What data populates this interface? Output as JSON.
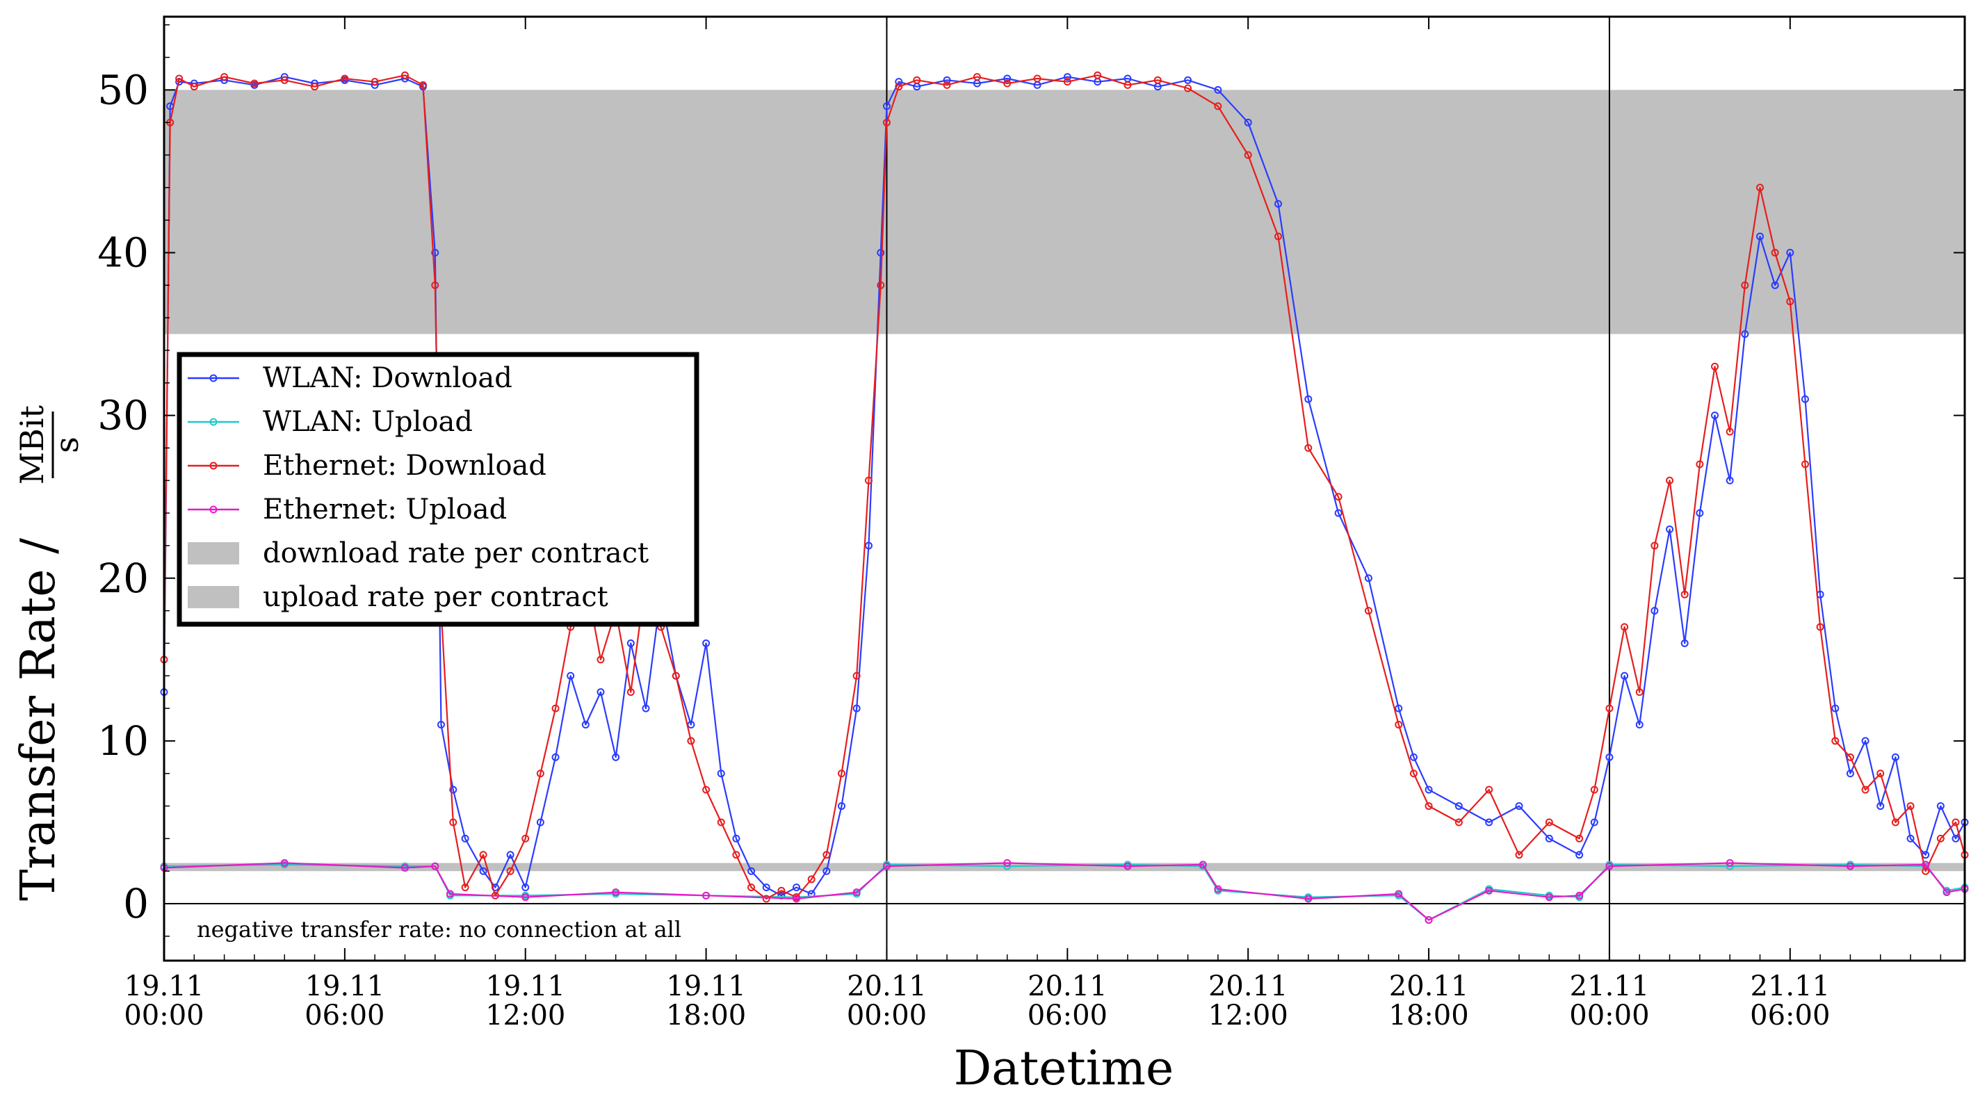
{
  "chart_data": {
    "type": "line",
    "xlabel": "Datetime",
    "ylabel": "Transfer Rate /",
    "ylabel_unit_numerator": "MBit",
    "ylabel_unit_denominator": "s",
    "ylim": [
      -3.5,
      54.5
    ],
    "xlim_hours": [
      0,
      59.8
    ],
    "yticks": [
      "0",
      "10",
      "20",
      "30",
      "40",
      "50"
    ],
    "xticks": [
      {
        "day": "19.11",
        "time": "00:00",
        "hours": 0
      },
      {
        "day": "19.11",
        "time": "06:00",
        "hours": 6
      },
      {
        "day": "19.11",
        "time": "12:00",
        "hours": 12
      },
      {
        "day": "19.11",
        "time": "18:00",
        "hours": 18
      },
      {
        "day": "20.11",
        "time": "00:00",
        "hours": 24
      },
      {
        "day": "20.11",
        "time": "06:00",
        "hours": 30
      },
      {
        "day": "20.11",
        "time": "12:00",
        "hours": 36
      },
      {
        "day": "20.11",
        "time": "18:00",
        "hours": 42
      },
      {
        "day": "21.11",
        "time": "00:00",
        "hours": 48
      },
      {
        "day": "21.11",
        "time": "06:00",
        "hours": 54
      }
    ],
    "day_boundaries_hours": [
      24,
      48
    ],
    "bands": [
      {
        "name": "download rate per contract",
        "y_range": [
          35,
          50
        ],
        "color": "#c0c0c0"
      },
      {
        "name": "upload rate per contract",
        "y_range": [
          2.0,
          2.5
        ],
        "color": "#c0c0c0"
      }
    ],
    "series": [
      {
        "name": "WLAN: Download",
        "color": "#2a3cff",
        "points": [
          [
            0.0,
            13
          ],
          [
            0.2,
            49
          ],
          [
            0.5,
            50.5
          ],
          [
            1.0,
            50.4
          ],
          [
            2,
            50.6
          ],
          [
            3,
            50.3
          ],
          [
            4,
            50.8
          ],
          [
            5,
            50.4
          ],
          [
            6,
            50.6
          ],
          [
            7,
            50.3
          ],
          [
            8,
            50.7
          ],
          [
            8.6,
            50.2
          ],
          [
            9.0,
            40
          ],
          [
            9.2,
            11
          ],
          [
            9.6,
            7
          ],
          [
            10.0,
            4
          ],
          [
            10.6,
            2
          ],
          [
            11,
            1
          ],
          [
            11.5,
            3
          ],
          [
            12,
            1
          ],
          [
            12.5,
            5
          ],
          [
            13,
            9
          ],
          [
            13.5,
            14
          ],
          [
            14,
            11
          ],
          [
            14.5,
            13
          ],
          [
            15,
            9
          ],
          [
            15.5,
            16
          ],
          [
            16,
            12
          ],
          [
            16.5,
            19
          ],
          [
            17,
            14
          ],
          [
            17.5,
            11
          ],
          [
            18,
            16
          ],
          [
            18.5,
            8
          ],
          [
            19,
            4
          ],
          [
            19.5,
            2
          ],
          [
            20,
            1
          ],
          [
            20.5,
            0.5
          ],
          [
            21,
            1
          ],
          [
            21.5,
            0.6
          ],
          [
            22,
            2
          ],
          [
            22.5,
            6
          ],
          [
            23,
            12
          ],
          [
            23.4,
            22
          ],
          [
            23.8,
            40
          ],
          [
            24.0,
            49
          ],
          [
            24.4,
            50.5
          ],
          [
            25,
            50.2
          ],
          [
            26,
            50.6
          ],
          [
            27,
            50.4
          ],
          [
            28,
            50.7
          ],
          [
            29,
            50.3
          ],
          [
            30,
            50.8
          ],
          [
            31,
            50.5
          ],
          [
            32,
            50.7
          ],
          [
            33,
            50.2
          ],
          [
            34,
            50.6
          ],
          [
            35,
            50.0
          ],
          [
            36,
            48
          ],
          [
            37,
            43
          ],
          [
            38,
            31
          ],
          [
            39,
            24
          ],
          [
            40,
            20
          ],
          [
            41,
            12
          ],
          [
            41.5,
            9
          ],
          [
            42,
            7
          ],
          [
            43,
            6
          ],
          [
            44,
            5
          ],
          [
            45,
            6
          ],
          [
            46,
            4
          ],
          [
            47,
            3
          ],
          [
            47.5,
            5
          ],
          [
            48,
            9
          ],
          [
            48.5,
            14
          ],
          [
            49,
            11
          ],
          [
            49.5,
            18
          ],
          [
            50,
            23
          ],
          [
            50.5,
            16
          ],
          [
            51,
            24
          ],
          [
            51.5,
            30
          ],
          [
            52,
            26
          ],
          [
            52.5,
            35
          ],
          [
            53,
            41
          ],
          [
            53.5,
            38
          ],
          [
            54,
            40
          ],
          [
            54.5,
            31
          ],
          [
            55,
            19
          ],
          [
            55.5,
            12
          ],
          [
            56,
            8
          ],
          [
            56.5,
            10
          ],
          [
            57,
            6
          ],
          [
            57.5,
            9
          ],
          [
            58,
            4
          ],
          [
            58.5,
            3
          ],
          [
            59,
            6
          ],
          [
            59.5,
            4
          ],
          [
            59.8,
            5
          ]
        ]
      },
      {
        "name": "WLAN: Upload",
        "color": "#20c8c8",
        "points": [
          [
            0,
            2.3
          ],
          [
            4,
            2.4
          ],
          [
            8,
            2.3
          ],
          [
            9,
            2.3
          ],
          [
            9.5,
            0.5
          ],
          [
            12,
            0.5
          ],
          [
            15,
            0.6
          ],
          [
            18,
            0.5
          ],
          [
            21,
            0.4
          ],
          [
            23,
            0.6
          ],
          [
            24,
            2.4
          ],
          [
            28,
            2.3
          ],
          [
            32,
            2.4
          ],
          [
            34.5,
            2.3
          ],
          [
            35,
            0.8
          ],
          [
            38,
            0.4
          ],
          [
            41,
            0.5
          ],
          [
            42,
            -1
          ],
          [
            44,
            0.9
          ],
          [
            46,
            0.5
          ],
          [
            47,
            0.4
          ],
          [
            48,
            2.4
          ],
          [
            52,
            2.3
          ],
          [
            56,
            2.4
          ],
          [
            58.5,
            2.3
          ],
          [
            59.2,
            0.8
          ],
          [
            59.8,
            1.0
          ]
        ]
      },
      {
        "name": "Ethernet: Download",
        "color": "#e61e1e",
        "points": [
          [
            0.0,
            15
          ],
          [
            0.2,
            48
          ],
          [
            0.5,
            50.7
          ],
          [
            1.0,
            50.2
          ],
          [
            2,
            50.8
          ],
          [
            3,
            50.4
          ],
          [
            4,
            50.6
          ],
          [
            5,
            50.2
          ],
          [
            6,
            50.7
          ],
          [
            7,
            50.5
          ],
          [
            8,
            50.9
          ],
          [
            8.6,
            50.3
          ],
          [
            9.0,
            38
          ],
          [
            9.2,
            18
          ],
          [
            9.6,
            5
          ],
          [
            10.0,
            1
          ],
          [
            10.6,
            3
          ],
          [
            11,
            0.5
          ],
          [
            11.5,
            2
          ],
          [
            12,
            4
          ],
          [
            12.5,
            8
          ],
          [
            13,
            12
          ],
          [
            13.5,
            17
          ],
          [
            14,
            20
          ],
          [
            14.5,
            15
          ],
          [
            15,
            18
          ],
          [
            15.5,
            13
          ],
          [
            16,
            20
          ],
          [
            16.5,
            17
          ],
          [
            17,
            14
          ],
          [
            17.5,
            10
          ],
          [
            18,
            7
          ],
          [
            18.5,
            5
          ],
          [
            19,
            3
          ],
          [
            19.5,
            1
          ],
          [
            20,
            0.3
          ],
          [
            20.5,
            0.8
          ],
          [
            21,
            0.4
          ],
          [
            21.5,
            1.5
          ],
          [
            22,
            3
          ],
          [
            22.5,
            8
          ],
          [
            23,
            14
          ],
          [
            23.4,
            26
          ],
          [
            23.8,
            38
          ],
          [
            24.0,
            48
          ],
          [
            24.4,
            50.2
          ],
          [
            25,
            50.6
          ],
          [
            26,
            50.3
          ],
          [
            27,
            50.8
          ],
          [
            28,
            50.4
          ],
          [
            29,
            50.7
          ],
          [
            30,
            50.5
          ],
          [
            31,
            50.9
          ],
          [
            32,
            50.3
          ],
          [
            33,
            50.6
          ],
          [
            34,
            50.1
          ],
          [
            35,
            49
          ],
          [
            36,
            46
          ],
          [
            37,
            41
          ],
          [
            38,
            28
          ],
          [
            39,
            25
          ],
          [
            40,
            18
          ],
          [
            41,
            11
          ],
          [
            41.5,
            8
          ],
          [
            42,
            6
          ],
          [
            43,
            5
          ],
          [
            44,
            7
          ],
          [
            45,
            3
          ],
          [
            46,
            5
          ],
          [
            47,
            4
          ],
          [
            47.5,
            7
          ],
          [
            48,
            12
          ],
          [
            48.5,
            17
          ],
          [
            49,
            13
          ],
          [
            49.5,
            22
          ],
          [
            50,
            26
          ],
          [
            50.5,
            19
          ],
          [
            51,
            27
          ],
          [
            51.5,
            33
          ],
          [
            52,
            29
          ],
          [
            52.5,
            38
          ],
          [
            53,
            44
          ],
          [
            53.5,
            40
          ],
          [
            54,
            37
          ],
          [
            54.5,
            27
          ],
          [
            55,
            17
          ],
          [
            55.5,
            10
          ],
          [
            56,
            9
          ],
          [
            56.5,
            7
          ],
          [
            57,
            8
          ],
          [
            57.5,
            5
          ],
          [
            58,
            6
          ],
          [
            58.5,
            2
          ],
          [
            59,
            4
          ],
          [
            59.5,
            5
          ],
          [
            59.8,
            3
          ]
        ]
      },
      {
        "name": "Ethernet: Upload",
        "color": "#e619c8",
        "points": [
          [
            0,
            2.2
          ],
          [
            4,
            2.5
          ],
          [
            8,
            2.2
          ],
          [
            9,
            2.3
          ],
          [
            9.5,
            0.6
          ],
          [
            12,
            0.4
          ],
          [
            15,
            0.7
          ],
          [
            18,
            0.5
          ],
          [
            21,
            0.3
          ],
          [
            23,
            0.7
          ],
          [
            24,
            2.3
          ],
          [
            28,
            2.5
          ],
          [
            32,
            2.3
          ],
          [
            34.5,
            2.4
          ],
          [
            35,
            0.9
          ],
          [
            38,
            0.3
          ],
          [
            41,
            0.6
          ],
          [
            42,
            -1
          ],
          [
            44,
            0.8
          ],
          [
            46,
            0.4
          ],
          [
            47,
            0.5
          ],
          [
            48,
            2.3
          ],
          [
            52,
            2.5
          ],
          [
            56,
            2.3
          ],
          [
            58.5,
            2.4
          ],
          [
            59.2,
            0.7
          ],
          [
            59.8,
            0.9
          ]
        ]
      }
    ],
    "legend": {
      "placement": "left-middle",
      "entries": [
        {
          "label": "WLAN: Download",
          "kind": "line",
          "color": "#2a3cff"
        },
        {
          "label": "WLAN: Upload",
          "kind": "line",
          "color": "#20c8c8"
        },
        {
          "label": "Ethernet: Download",
          "kind": "line",
          "color": "#e61e1e"
        },
        {
          "label": "Ethernet: Upload",
          "kind": "line",
          "color": "#e619c8"
        },
        {
          "label": "download rate per contract",
          "kind": "band",
          "color": "#c0c0c0"
        },
        {
          "label": "upload rate per contract",
          "kind": "band",
          "color": "#c0c0c0"
        }
      ]
    },
    "annotation": "negative transfer rate: no connection at all",
    "grid": false
  }
}
